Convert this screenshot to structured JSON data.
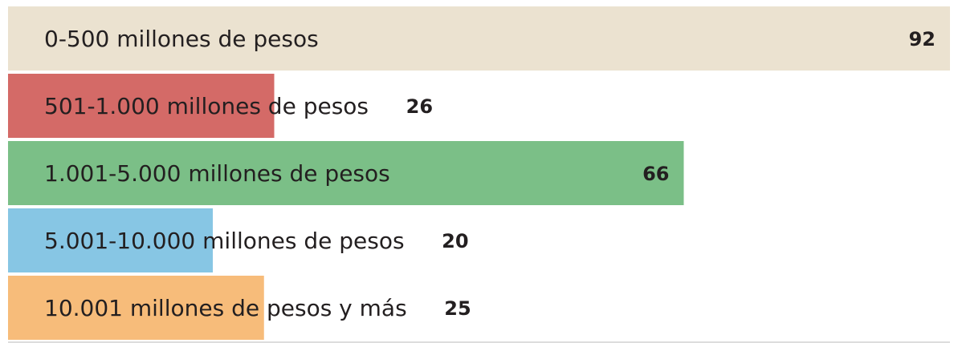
{
  "chart_data": {
    "type": "bar",
    "orientation": "horizontal",
    "categories": [
      "0-500 millones de pesos",
      "501-1.000 millones  de pesos",
      "1.001-5.000 millones de pesos",
      "5.001-10.000 millones de pesos",
      "10.001 millones de pesos y más"
    ],
    "values": [
      92,
      26,
      66,
      20,
      25
    ],
    "colors": [
      "#ebe2d0",
      "#d46a67",
      "#7bbf87",
      "#87c6e4",
      "#f7bc7a"
    ]
  }
}
